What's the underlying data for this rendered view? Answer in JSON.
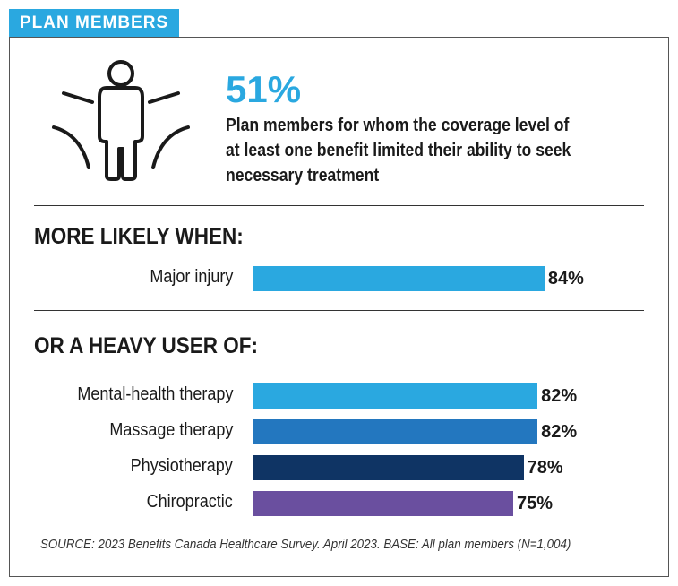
{
  "header": {
    "tag": "PLAN MEMBERS"
  },
  "headline": {
    "stat": "51%",
    "description": "Plan members for whom the coverage level of at least one benefit limited their ability to seek necessary treatment"
  },
  "colors": {
    "accent": "#2aa8e0",
    "mid_blue": "#2377bf",
    "navy": "#0f3464",
    "purple": "#6a4f9f"
  },
  "chart_data": [
    {
      "type": "bar",
      "orientation": "horizontal",
      "title": "MORE LIKELY WHEN:",
      "categories": [
        "Major injury"
      ],
      "values": [
        84
      ],
      "value_labels": [
        "84%"
      ],
      "colors": [
        "#2aa8e0"
      ],
      "xlim": [
        0,
        100
      ]
    },
    {
      "type": "bar",
      "orientation": "horizontal",
      "title": "OR A HEAVY USER OF:",
      "categories": [
        "Mental-health therapy",
        "Massage therapy",
        "Physiotherapy",
        "Chiropractic"
      ],
      "values": [
        82,
        82,
        78,
        75
      ],
      "value_labels": [
        "82%",
        "82%",
        "78%",
        "75%"
      ],
      "colors": [
        "#2aa8e0",
        "#2377bf",
        "#0f3464",
        "#6a4f9f"
      ],
      "xlim": [
        0,
        100
      ]
    }
  ],
  "source": "SOURCE: 2023 Benefits Canada Healthcare Survey. April 2023. BASE: All plan members (N=1,004)"
}
